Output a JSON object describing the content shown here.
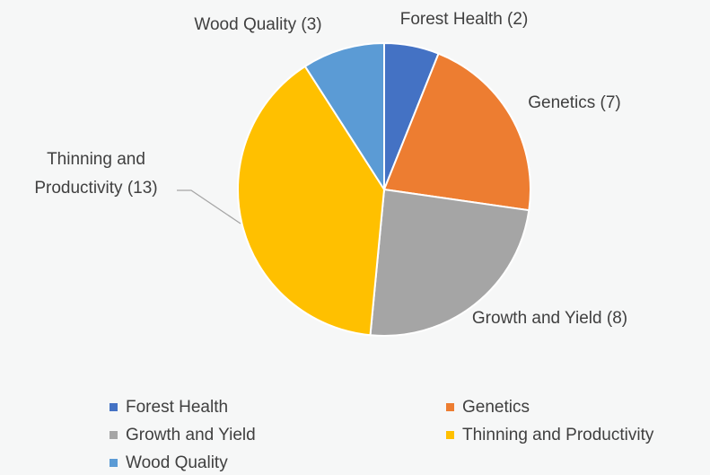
{
  "chart_data": {
    "type": "pie",
    "categories": [
      "Forest Health",
      "Genetics",
      "Growth and Yield",
      "Thinning and Productivity",
      "Wood Quality"
    ],
    "values": [
      2,
      7,
      8,
      13,
      3
    ],
    "value_labels": [
      "Forest Health (2)",
      "Genetics (7)",
      "Growth and Yield (8)",
      "Thinning and Productivity (13)",
      "Wood Quality (3)"
    ],
    "colors": [
      "#4472c4",
      "#ed7d31",
      "#a5a5a5",
      "#ffc000",
      "#5b9bd5"
    ],
    "legend": "bottom"
  }
}
